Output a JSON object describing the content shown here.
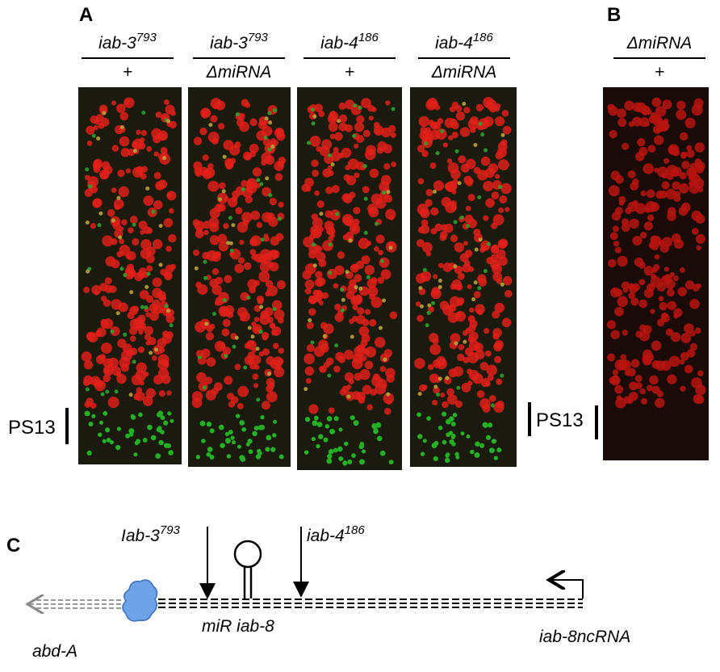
{
  "panel_a": {
    "label": "A",
    "genotypes": [
      {
        "top": "iab-3",
        "top_sup": "793",
        "bottom": "+"
      },
      {
        "top": "iab-3",
        "top_sup": "793",
        "bottom": "ΔmiRNA"
      },
      {
        "top": "iab-4",
        "top_sup": "186",
        "bottom": "+"
      },
      {
        "top": "iab-4",
        "top_sup": "186",
        "bottom": "ΔmiRNA"
      }
    ],
    "marker": "PS13"
  },
  "panel_b": {
    "label": "B",
    "genotype": {
      "top": "ΔmiRNA",
      "bottom": "+"
    },
    "marker": "PS13"
  },
  "panel_c": {
    "label": "C",
    "allele_left": {
      "text": "Iab-3",
      "sup": "793"
    },
    "allele_right": {
      "text": "iab-4",
      "sup": "186"
    },
    "mirna": "miR iab-8",
    "transcript": "iab-8ncRNA",
    "gene": "abd-A"
  }
}
